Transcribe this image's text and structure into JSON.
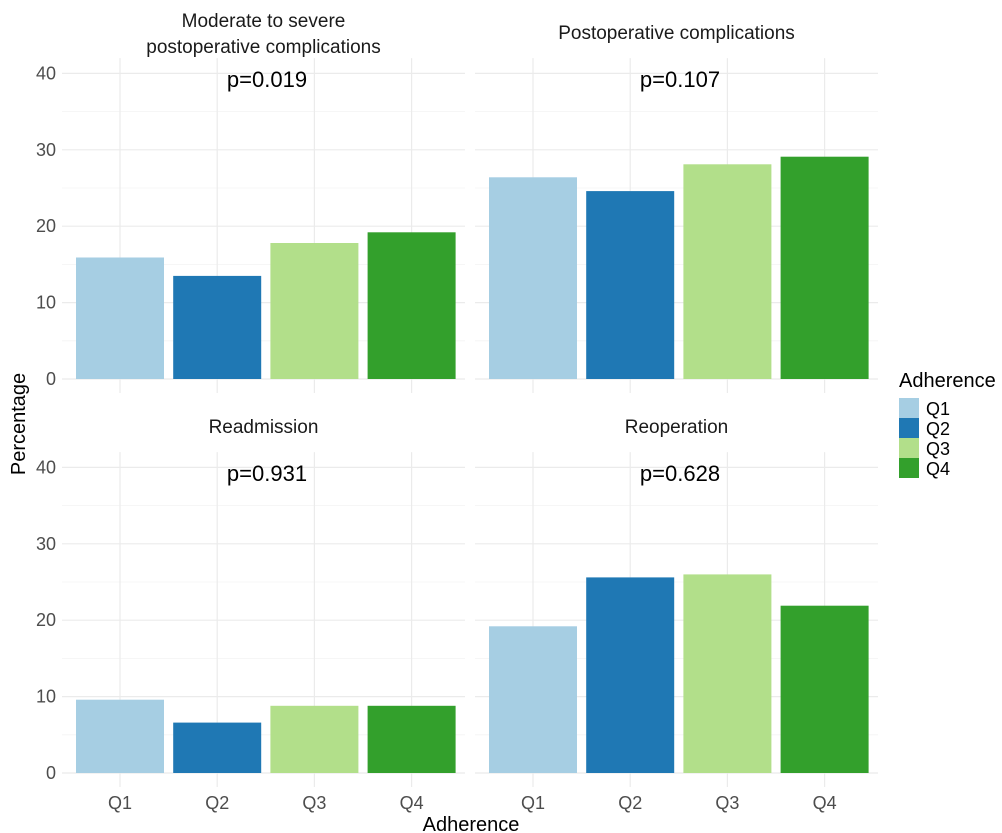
{
  "chart_data": {
    "type": "bar",
    "xlabel": "Adherence",
    "ylabel": "Percentage",
    "ylim": [
      0,
      42
    ],
    "yticks": [
      0,
      10,
      20,
      30,
      40
    ],
    "categories": [
      "Q1",
      "Q2",
      "Q3",
      "Q4"
    ],
    "grid": true,
    "legend": {
      "title": "Adherence",
      "position": "right",
      "entries": [
        "Q1",
        "Q2",
        "Q3",
        "Q4"
      ]
    },
    "colors": {
      "Q1": "#a6cee3",
      "Q2": "#1f78b4",
      "Q3": "#b2df8a",
      "Q4": "#33a02c"
    },
    "panels": [
      {
        "title_lines": [
          "Moderate to severe",
          "postoperative complications"
        ],
        "annotation": "p=0.019",
        "values": [
          15.9,
          13.5,
          17.8,
          19.2
        ]
      },
      {
        "title_lines": [
          "Postoperative complications"
        ],
        "annotation": "p=0.107",
        "values": [
          26.4,
          24.6,
          28.1,
          29.1
        ]
      },
      {
        "title_lines": [
          "Readmission"
        ],
        "annotation": "p=0.931",
        "values": [
          9.6,
          6.6,
          8.8,
          8.8
        ]
      },
      {
        "title_lines": [
          "Reoperation"
        ],
        "annotation": "p=0.628",
        "values": [
          19.2,
          25.6,
          26.0,
          21.9
        ]
      }
    ]
  }
}
